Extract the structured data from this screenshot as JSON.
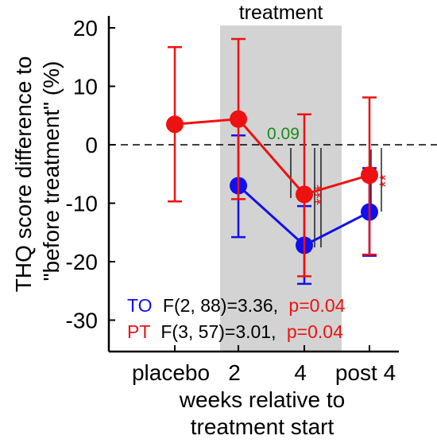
{
  "chart_data": {
    "type": "line",
    "title": "",
    "xlabel_lines": [
      "weeks relative to",
      "treatment start"
    ],
    "ylabel_lines": [
      "THQ score difference to",
      "\"before treatment\" (%)"
    ],
    "categories": [
      "placebo",
      "2",
      "4",
      "post 4"
    ],
    "ylim": [
      -35,
      20
    ],
    "yticks": [
      20,
      10,
      0,
      -10,
      -20,
      -30
    ],
    "ytick_labels": [
      "20",
      "10",
      "0",
      "-10",
      "-20",
      "-30"
    ],
    "shaded_region": {
      "label": "treatment",
      "from_category": "2",
      "to_category": "4"
    },
    "reference_line_y": 0,
    "series": [
      {
        "name": "TO",
        "color": "#1010ee",
        "points": [
          {
            "category": "2",
            "y": -7.0,
            "err_low": -15.8,
            "err_high": 1.6
          },
          {
            "category": "4",
            "y": -17.2,
            "err_low": -23.8,
            "err_high": -10.5
          },
          {
            "category": "post 4",
            "y": -11.5,
            "err_low": -19.0,
            "err_high": -4.0
          }
        ]
      },
      {
        "name": "PT",
        "color": "#ee1111",
        "points": [
          {
            "category": "placebo",
            "y": 3.5,
            "err_low": -9.7,
            "err_high": 16.7
          },
          {
            "category": "2",
            "y": 4.4,
            "err_low": -9.3,
            "err_high": 18.1
          },
          {
            "category": "4",
            "y": -8.5,
            "err_low": -22.5,
            "err_high": 5.2
          },
          {
            "category": "post 4",
            "y": -5.2,
            "err_low": -18.8,
            "err_high": 8.1
          }
        ]
      }
    ],
    "annotations": [
      {
        "text": "0.09",
        "color": "#1a8a1a"
      },
      {
        "text": "***",
        "color": "#ee1111"
      },
      {
        "text": "**",
        "color": "#ee1111"
      }
    ],
    "stats": [
      {
        "group": "TO",
        "group_color": "#1010ee",
        "stat": "F(2, 88)=3.36,",
        "p": "p=0.04",
        "p_color": "#ee1111"
      },
      {
        "group": "PT",
        "group_color": "#ee1111",
        "stat": "F(3, 57)=3.01,",
        "p": "p=0.04",
        "p_color": "#ee1111"
      }
    ]
  }
}
